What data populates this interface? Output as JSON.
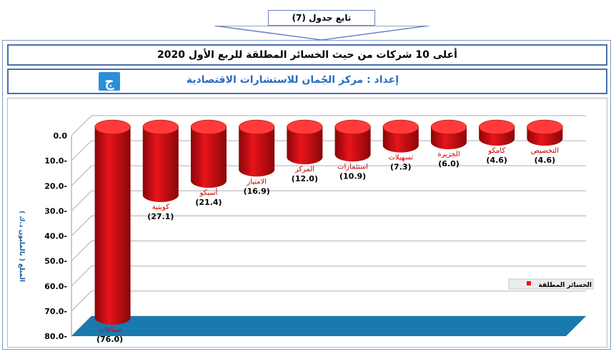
{
  "header": {
    "banner": "تابع جدول (7)",
    "title": "أعلى 10 شركات من حيث الخسائر المطلقة للربع الأول 2020",
    "subtitle": "إعداد : مركز الجُمان للاستشارات الاقتصادية",
    "logo_text": "ج"
  },
  "colors": {
    "bar": "#e8141a",
    "bar_dark": "#8a0509",
    "bar_top": "#ff3a3a",
    "floor": "#1a7ab0",
    "frame": "#4a6fb0",
    "label": "#cc0000"
  },
  "chart_data": {
    "type": "bar",
    "categories": [
      "صناعات",
      "كويتية",
      "أسيكو",
      "الامتياز",
      "المركز",
      "استثمارات",
      "تسهيلات",
      "الجزيرة",
      "كامكو",
      "التخصيص"
    ],
    "value_labels": [
      "(76.0)",
      "(27.1)",
      "(21.4)",
      "(16.9)",
      "(12.0)",
      "(10.9)",
      "(7.3)",
      "(6.0)",
      "(4.6)",
      "(4.6)"
    ],
    "series": [
      {
        "name": "الخسائر المطلقة",
        "values": [
          -76.0,
          -27.1,
          -21.4,
          -16.9,
          -12.0,
          -10.9,
          -7.3,
          -6.0,
          -4.6,
          -4.6
        ]
      }
    ],
    "ylabel": "المبلغ ( بالمليون د.ك )",
    "ylim": [
      -80,
      0
    ],
    "y_ticks": [
      "0.0",
      "10.0-",
      "20.0-",
      "30.0-",
      "40.0-",
      "50.0-",
      "60.0-",
      "70.0-",
      "80.0-"
    ],
    "grid": true,
    "legend": "right"
  }
}
